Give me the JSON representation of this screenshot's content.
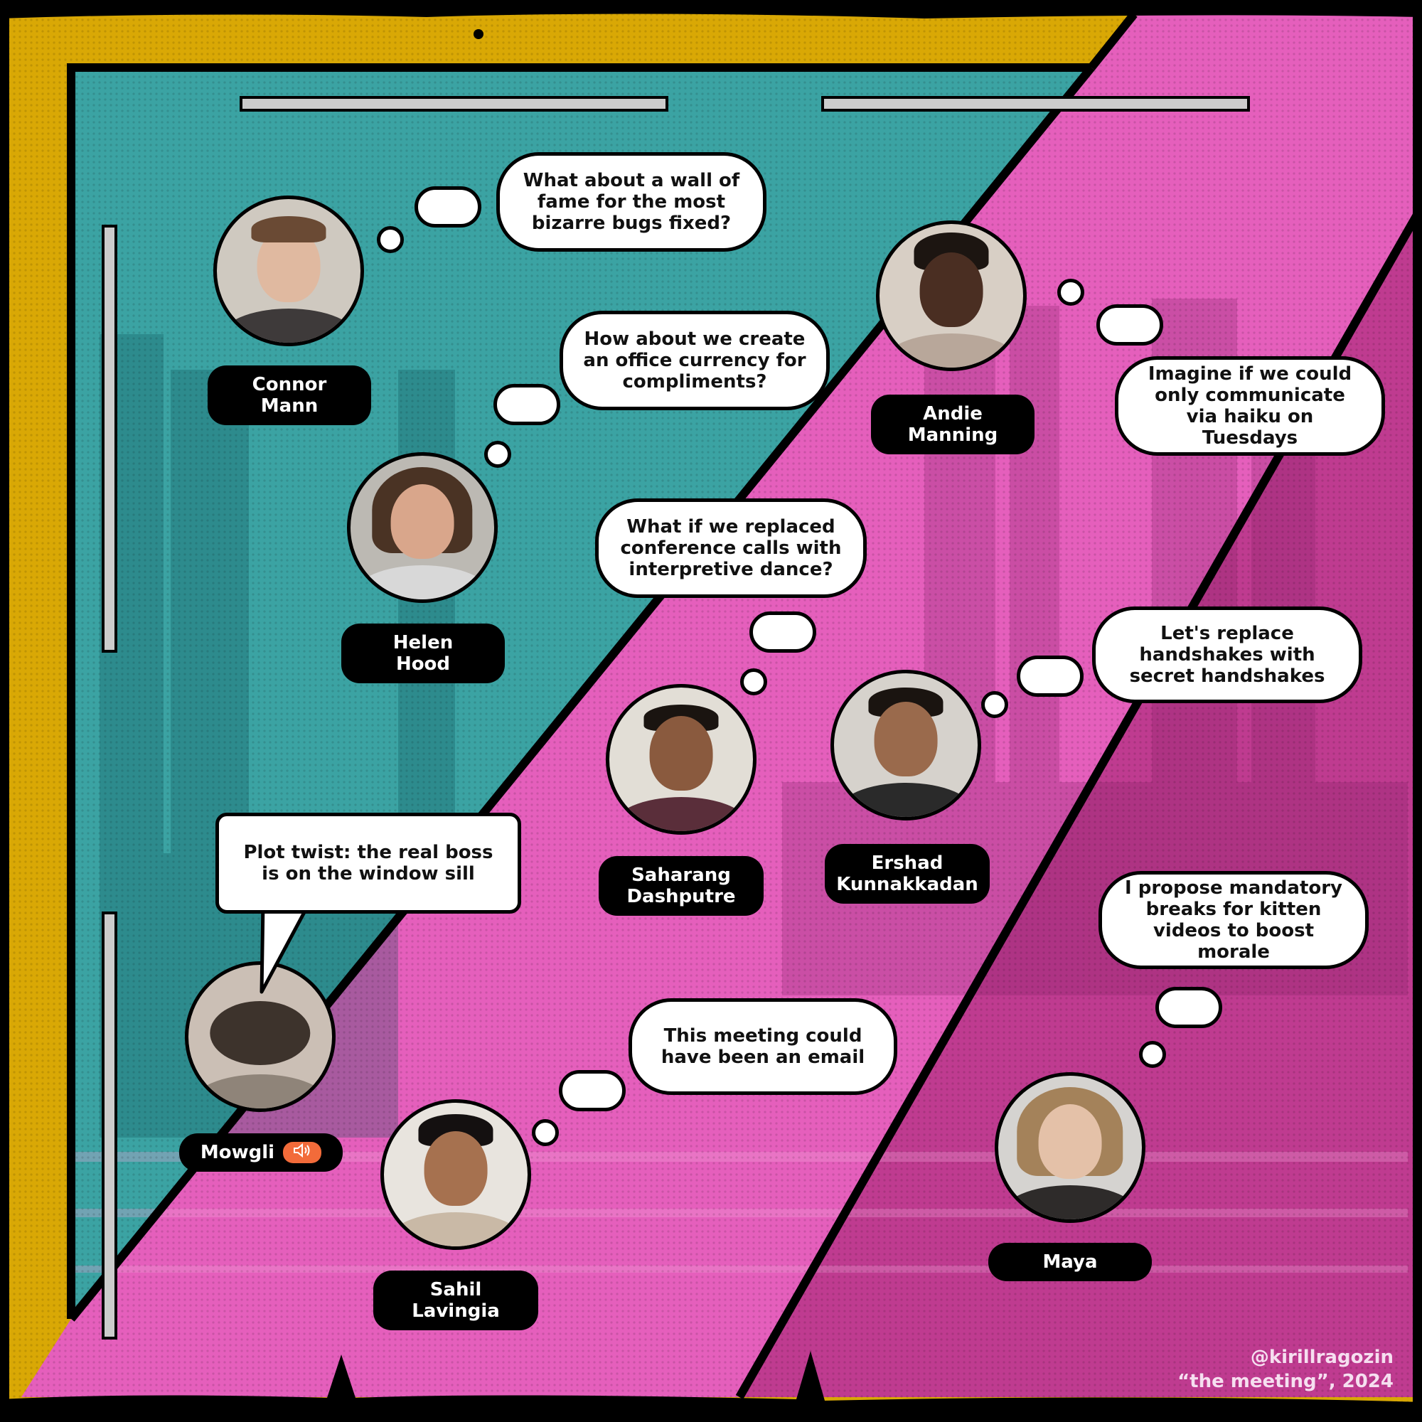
{
  "colors": {
    "yellow": "#d9a805",
    "teal": "#3ba3a3",
    "pink": "#e45db8",
    "magenta": "#c23e93",
    "ink": "#000000",
    "bar": "#cfcfcf",
    "speaker": "#f26b3a"
  },
  "participants": [
    {
      "id": "connor",
      "line1": "Connor",
      "line2": "Mann",
      "bubble": "What about a wall of fame for the most bizarre bugs fixed?"
    },
    {
      "id": "helen",
      "line1": "Helen",
      "line2": "Hood",
      "bubble": "How about we create an office currency for compliments?"
    },
    {
      "id": "andie",
      "line1": "Andie",
      "line2": "Manning",
      "bubble": "Imagine if we could only communicate via haiku on Tuesdays"
    },
    {
      "id": "saharang",
      "line1": "Saharang",
      "line2": "Dashputre",
      "bubble": "What if we replaced conference calls with interpretive dance?"
    },
    {
      "id": "ershad",
      "line1": "Ershad",
      "line2": "Kunnakkadan",
      "bubble": "Let's replace handshakes with secret handshakes"
    },
    {
      "id": "mowgli",
      "line1": "Mowgli",
      "bubble": "Plot twist: the real boss is on the window sill",
      "speaker_icon": "speaker-icon"
    },
    {
      "id": "sahil",
      "line1": "Sahil",
      "line2": "Lavingia",
      "bubble": "This meeting could have been an email"
    },
    {
      "id": "maya",
      "line1": "Maya",
      "bubble": "I propose mandatory breaks for kitten videos to boost morale"
    }
  ],
  "credit": {
    "handle": "@kirillragozin",
    "title": "“the meeting”, 2024"
  }
}
